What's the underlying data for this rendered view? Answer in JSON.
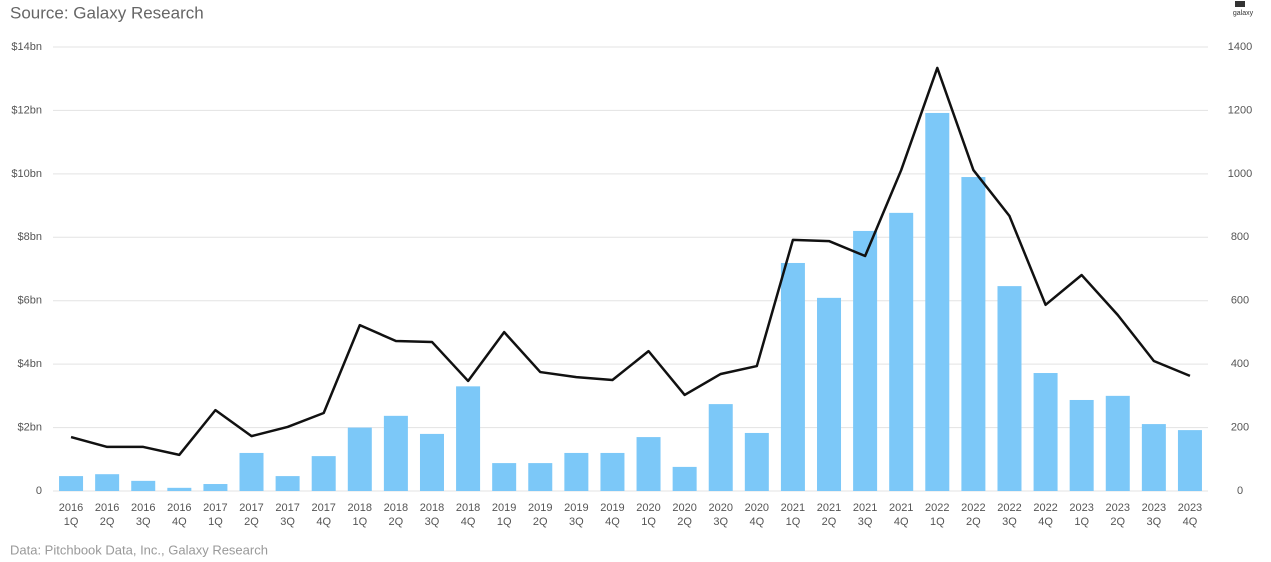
{
  "chart_data": {
    "type": "bar_line",
    "subtitle": "Source: Galaxy Research",
    "note": "Data: Pitchbook Data, Inc., Galaxy Research",
    "logo": "galaxy",
    "categories": [
      [
        "2016",
        "1Q"
      ],
      [
        "2016",
        "2Q"
      ],
      [
        "2016",
        "3Q"
      ],
      [
        "2016",
        "4Q"
      ],
      [
        "2017",
        "1Q"
      ],
      [
        "2017",
        "2Q"
      ],
      [
        "2017",
        "3Q"
      ],
      [
        "2017",
        "4Q"
      ],
      [
        "2018",
        "1Q"
      ],
      [
        "2018",
        "2Q"
      ],
      [
        "2018",
        "3Q"
      ],
      [
        "2018",
        "4Q"
      ],
      [
        "2019",
        "1Q"
      ],
      [
        "2019",
        "2Q"
      ],
      [
        "2019",
        "3Q"
      ],
      [
        "2019",
        "4Q"
      ],
      [
        "2020",
        "1Q"
      ],
      [
        "2020",
        "2Q"
      ],
      [
        "2020",
        "3Q"
      ],
      [
        "2020",
        "4Q"
      ],
      [
        "2021",
        "1Q"
      ],
      [
        "2021",
        "2Q"
      ],
      [
        "2021",
        "3Q"
      ],
      [
        "2021",
        "4Q"
      ],
      [
        "2022",
        "1Q"
      ],
      [
        "2022",
        "2Q"
      ],
      [
        "2022",
        "3Q"
      ],
      [
        "2022",
        "4Q"
      ],
      [
        "2023",
        "1Q"
      ],
      [
        "2023",
        "2Q"
      ],
      [
        "2023",
        "3Q"
      ],
      [
        "2023",
        "4Q"
      ]
    ],
    "series": [
      {
        "type": "bar",
        "color": "#7cc8f8",
        "values": [
          0.47,
          0.53,
          0.32,
          0.1,
          0.22,
          1.2,
          0.47,
          1.1,
          2.0,
          2.37,
          1.8,
          3.3,
          0.88,
          0.88,
          1.2,
          1.2,
          1.7,
          0.76,
          2.74,
          1.83,
          7.19,
          6.09,
          8.2,
          8.77,
          11.92,
          9.9,
          6.46,
          3.72,
          2.87,
          3.0,
          2.11,
          1.92
        ]
      },
      {
        "type": "line",
        "axis": "y2",
        "color": "#111111",
        "values": [
          170,
          139,
          139,
          114,
          255,
          173,
          202,
          246,
          523,
          473,
          470,
          347,
          501,
          375,
          359,
          350,
          441,
          303,
          369,
          394,
          792,
          788,
          741,
          1012,
          1334,
          1012,
          867,
          587,
          681,
          555,
          410,
          363
        ]
      }
    ],
    "ylim": [
      0,
      14
    ],
    "yticks": [
      0,
      {
        "value": 2,
        "label": "$2bn"
      },
      {
        "value": 4,
        "label": "$4bn"
      },
      {
        "value": 6,
        "label": "$6bn"
      },
      {
        "value": 8,
        "label": "$8bn"
      },
      {
        "value": 10,
        "label": "$10bn"
      },
      {
        "value": 12,
        "label": "$12bn"
      },
      {
        "value": 14,
        "label": "$14bn"
      }
    ],
    "y2lim": [
      0,
      1400
    ],
    "y2ticks": [
      0,
      200,
      400,
      600,
      800,
      1000,
      1200,
      1400
    ],
    "grid": true
  }
}
